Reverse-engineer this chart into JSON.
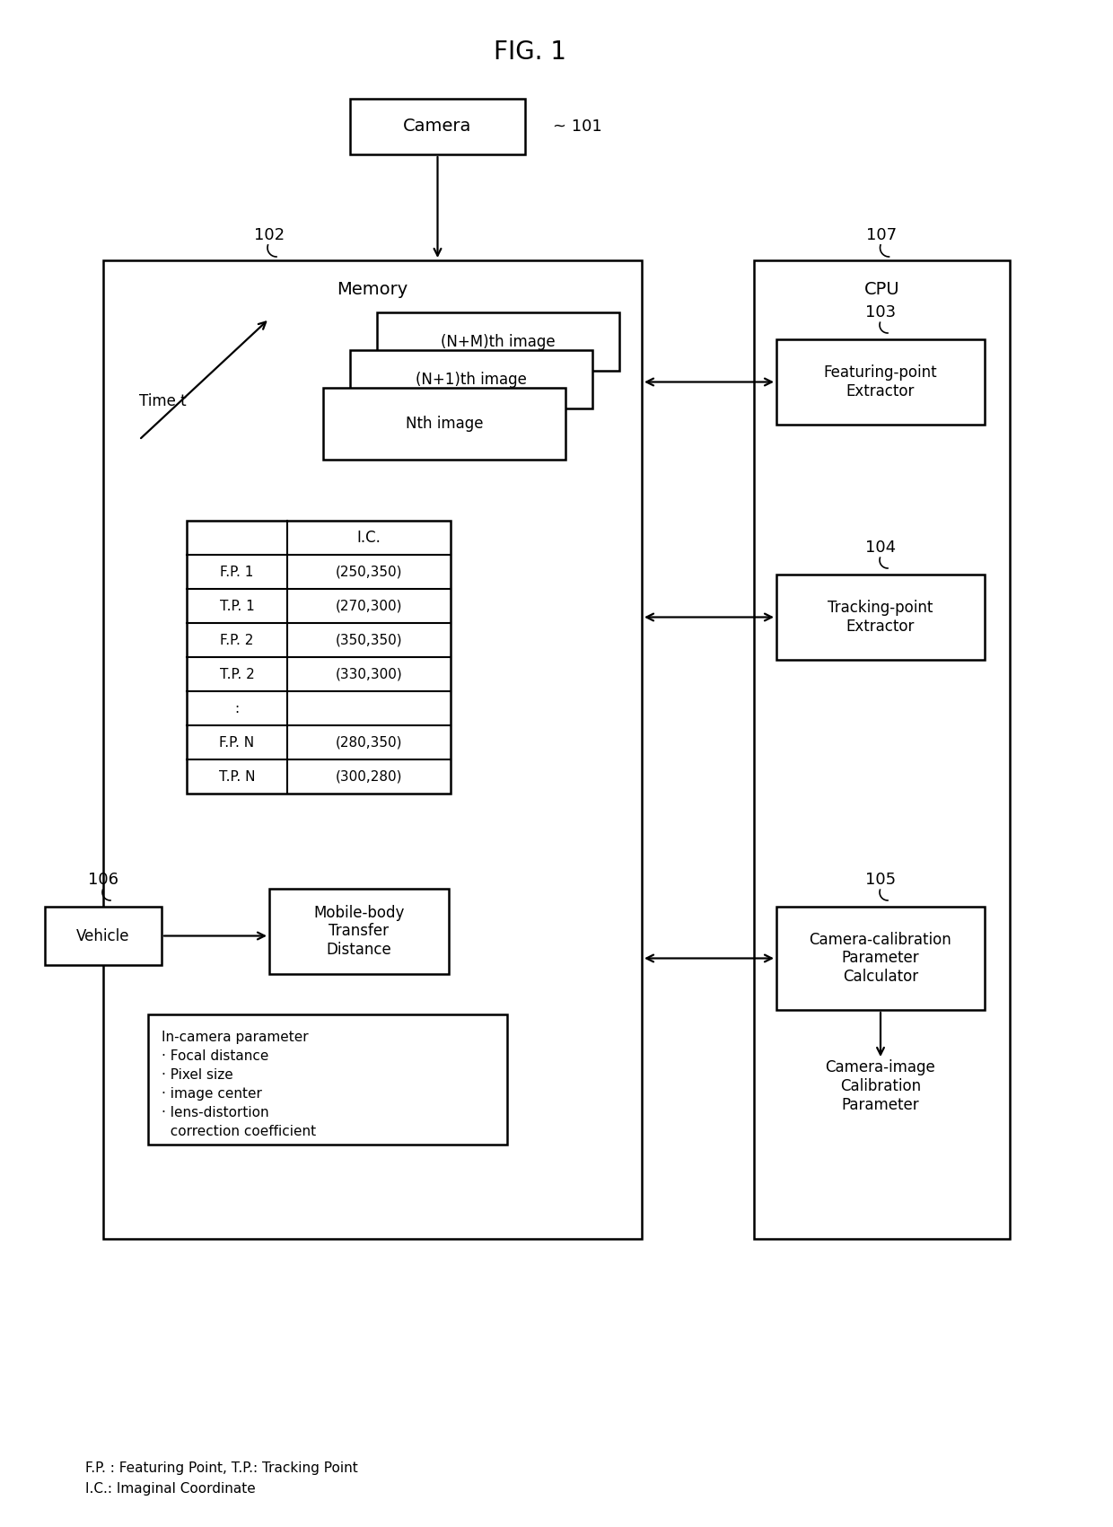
{
  "title": "FIG. 1",
  "bg_color": "#ffffff",
  "camera_label": "Camera",
  "camera_ref": "~ 101",
  "memory_label": "Memory",
  "memory_ref": "102",
  "cpu_label": "CPU",
  "cpu_ref": "107",
  "time_label": "Time t",
  "image_labels": [
    "(N+M)th image",
    "(N+1)th image",
    "Nth image"
  ],
  "table_header": "I.C.",
  "table_rows": [
    [
      "F.P. 1",
      "(250,350)"
    ],
    [
      "T.P. 1",
      "(270,300)"
    ],
    [
      "F.P. 2",
      "(350,350)"
    ],
    [
      "T.P. 2",
      "(330,300)"
    ],
    [
      ":",
      ""
    ],
    [
      "F.P. N",
      "(280,350)"
    ],
    [
      "T.P. N",
      "(300,280)"
    ]
  ],
  "vehicle_label": "Vehicle",
  "vehicle_ref": "106",
  "mobile_body_label": "Mobile-body\nTransfer\nDistance",
  "in_camera_lines": [
    "In-camera parameter",
    "· Focal distance",
    "· Pixel size",
    "· image center",
    "· lens-distortion",
    "  correction coefficient"
  ],
  "fp_extractor_label": "Featuring-point\nExtractor",
  "fp_ref": "103",
  "tp_extractor_label": "Tracking-point\nExtractor",
  "tp_ref": "104",
  "calib_label": "Camera-calibration\nParameter\nCalculator",
  "calib_ref": "105",
  "output_label": "Camera-image\nCalibration\nParameter",
  "footnote1": "F.P. : Featuring Point, T.P.: Tracking Point",
  "footnote2": "I.C.: Imaginal Coordinate"
}
